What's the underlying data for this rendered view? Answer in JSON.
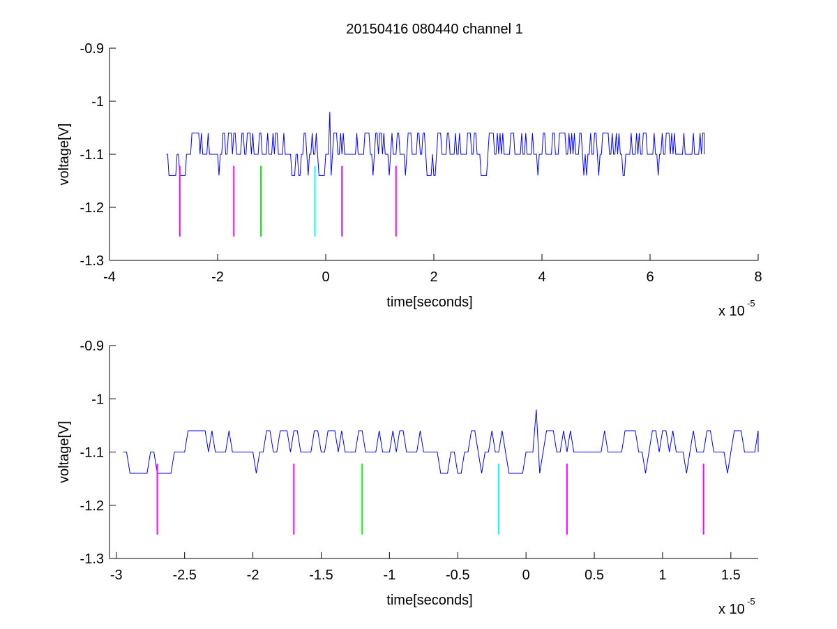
{
  "figure": {
    "title": "20150416 080440 channel 1",
    "background": "#ffffff"
  },
  "chart_data": [
    {
      "type": "line",
      "title": "20150416 080440 channel 1",
      "xlabel": "time[seconds]",
      "ylabel": "voltage[V]",
      "x_multiplier": "x 10",
      "x_multiplier_exponent": "-5",
      "xlim": [
        -4,
        8
      ],
      "ylim": [
        -1.3,
        -0.9
      ],
      "xticks": [
        -4,
        -2,
        0,
        2,
        4,
        6,
        8
      ],
      "xtick_labels": [
        "-4",
        "-2",
        "0",
        "2",
        "4",
        "6",
        "8"
      ],
      "yticks": [
        -1.3,
        -1.2,
        -1.1,
        -1,
        -0.9
      ],
      "ytick_labels": [
        "-1.3",
        "-1.2",
        "-1.1",
        "-1",
        "-0.9"
      ],
      "grid": false,
      "series": [
        {
          "color": "#0000ff",
          "x_range": [
            -2.95,
            7.0
          ],
          "levels": [
            -1.06,
            -1.1,
            -1.14
          ],
          "baseline": -1.1,
          "spike": {
            "x": 0.08,
            "y": -1.02
          }
        }
      ],
      "markers": [
        {
          "x": -2.7,
          "y_top": -1.122,
          "y_bottom": -1.255,
          "color": "#ff00ff"
        },
        {
          "x": -1.7,
          "y_top": -1.122,
          "y_bottom": -1.255,
          "color": "#ff00ff"
        },
        {
          "x": -1.2,
          "y_top": -1.122,
          "y_bottom": -1.255,
          "color": "#00ff00"
        },
        {
          "x": -0.2,
          "y_top": -1.122,
          "y_bottom": -1.255,
          "color": "#00ffff"
        },
        {
          "x": 0.3,
          "y_top": -1.122,
          "y_bottom": -1.255,
          "color": "#ff00ff"
        },
        {
          "x": 1.3,
          "y_top": -1.122,
          "y_bottom": -1.255,
          "color": "#ff00ff"
        }
      ]
    },
    {
      "type": "line",
      "title": "",
      "xlabel": "time[seconds]",
      "ylabel": "voltage[V]",
      "x_multiplier": "x 10",
      "x_multiplier_exponent": "-5",
      "xlim": [
        -3.05,
        1.7
      ],
      "ylim": [
        -1.3,
        -0.9
      ],
      "xticks": [
        -3,
        -2.5,
        -2,
        -1.5,
        -1,
        -0.5,
        0,
        0.5,
        1,
        1.5
      ],
      "xtick_labels": [
        "-3",
        "-2.5",
        "-2",
        "-1.5",
        "-1",
        "-0.5",
        "0",
        "0.5",
        "1",
        "1.5"
      ],
      "yticks": [
        -1.3,
        -1.2,
        -1.1,
        -1,
        -0.9
      ],
      "ytick_labels": [
        "-1.3",
        "-1.2",
        "-1.1",
        "-1",
        "-0.9"
      ],
      "grid": false,
      "series": [
        {
          "color": "#0000ff",
          "x_range": [
            -2.95,
            1.7
          ],
          "levels": [
            -1.06,
            -1.1,
            -1.14
          ],
          "baseline": -1.1,
          "spike": {
            "x": 0.08,
            "y": -1.02
          }
        }
      ],
      "markers": [
        {
          "x": -2.7,
          "y_top": -1.122,
          "y_bottom": -1.255,
          "color": "#ff00ff"
        },
        {
          "x": -1.7,
          "y_top": -1.122,
          "y_bottom": -1.255,
          "color": "#ff00ff"
        },
        {
          "x": -1.2,
          "y_top": -1.122,
          "y_bottom": -1.255,
          "color": "#00ff00"
        },
        {
          "x": -0.2,
          "y_top": -1.122,
          "y_bottom": -1.255,
          "color": "#00ffff"
        },
        {
          "x": 0.3,
          "y_top": -1.122,
          "y_bottom": -1.255,
          "color": "#ff00ff"
        },
        {
          "x": 1.3,
          "y_top": -1.122,
          "y_bottom": -1.255,
          "color": "#ff00ff"
        }
      ]
    }
  ]
}
